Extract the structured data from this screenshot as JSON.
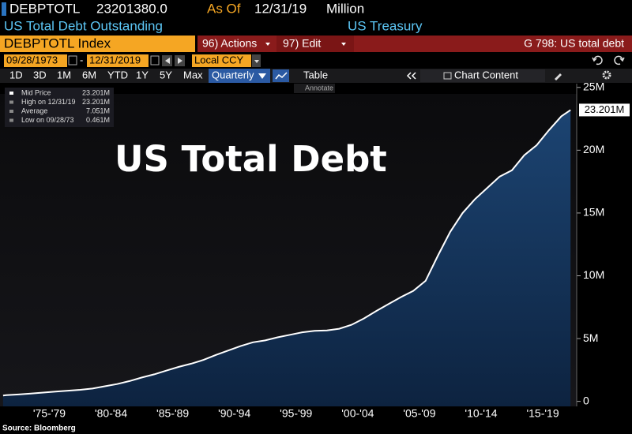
{
  "header": {
    "ticker": "DEBPTOTL",
    "value": "23201380.0",
    "as_of_label": "As Of",
    "as_of": "12/31/19",
    "units": "Million",
    "description": "US Total Debt Outstanding",
    "source_name": "US Treasury"
  },
  "command_bar": {
    "security": "DEBPTOTL Index",
    "actions": "96) Actions",
    "edit": "97) Edit",
    "function": "G 798: US total debt"
  },
  "dates": {
    "start": "09/28/1973",
    "separator": "-",
    "end": "12/31/2019",
    "currency": "Local CCY"
  },
  "toolbar": {
    "ranges": [
      "1D",
      "3D",
      "1M",
      "6M",
      "YTD",
      "1Y",
      "5Y",
      "Max"
    ],
    "frequency": "Quarterly",
    "table": "Table",
    "chart_content": "Chart Content",
    "annotate": "Annotate"
  },
  "legend": [
    {
      "label": "Mid Price",
      "value": "23.201M"
    },
    {
      "label": "High on 12/31/19",
      "value": "23.201M"
    },
    {
      "label": "Average",
      "value": "7.051M"
    },
    {
      "label": "Low on 09/28/73",
      "value": "0.461M"
    }
  ],
  "chart_data": {
    "type": "area",
    "title": "US Total Debt",
    "color": "#17375c",
    "line_color": "#ffffff",
    "x": [
      1973.75,
      1974,
      1975,
      1976,
      1977,
      1978,
      1979,
      1980,
      1981,
      1982,
      1983,
      1984,
      1985,
      1986,
      1987,
      1988,
      1989,
      1990,
      1991,
      1992,
      1993,
      1994,
      1995,
      1996,
      1997,
      1998,
      1999,
      2000,
      2001,
      2002,
      2003,
      2004,
      2005,
      2006,
      2007,
      2008,
      2009,
      2010,
      2011,
      2012,
      2013,
      2014,
      2015,
      2016,
      2017,
      2018,
      2019,
      2019.75
    ],
    "values": [
      0.461,
      0.49,
      0.55,
      0.62,
      0.7,
      0.78,
      0.85,
      0.92,
      1.02,
      1.2,
      1.38,
      1.62,
      1.9,
      2.15,
      2.45,
      2.75,
      3.0,
      3.3,
      3.7,
      4.05,
      4.4,
      4.7,
      4.85,
      5.1,
      5.3,
      5.5,
      5.62,
      5.65,
      5.78,
      6.1,
      6.6,
      7.2,
      7.75,
      8.3,
      8.8,
      9.6,
      11.6,
      13.5,
      15.0,
      16.1,
      17.0,
      17.9,
      18.4,
      19.6,
      20.4,
      21.6,
      22.7,
      23.201
    ],
    "last_value_label": "23.201M",
    "xlim": [
      1973.5,
      2020.25
    ],
    "xticks": [
      {
        "value": 1977.5,
        "label": "'75-'79"
      },
      {
        "value": 1982.5,
        "label": "'80-'84"
      },
      {
        "value": 1987.5,
        "label": "'85-'89"
      },
      {
        "value": 1992.5,
        "label": "'90-'94"
      },
      {
        "value": 1997.5,
        "label": "'95-'99"
      },
      {
        "value": 2002.5,
        "label": "'00-'04"
      },
      {
        "value": 2007.5,
        "label": "'05-'09"
      },
      {
        "value": 2012.5,
        "label": "'10-'14"
      },
      {
        "value": 2017.5,
        "label": "'15-'19"
      }
    ],
    "ylim": [
      -0.4,
      25.3
    ],
    "yticks": [
      0,
      {
        "value": 5,
        "label": "5M"
      },
      {
        "value": 10,
        "label": "10M"
      },
      {
        "value": 15,
        "label": "15M"
      },
      {
        "value": 20,
        "label": "20M"
      },
      {
        "value": 25,
        "label": "25M"
      }
    ]
  },
  "footer": {
    "source": "Source: Bloomberg"
  }
}
